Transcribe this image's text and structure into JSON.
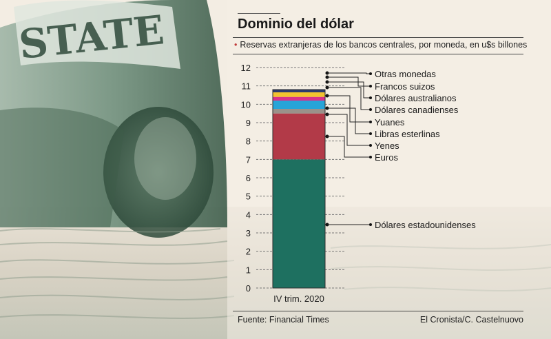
{
  "header": {
    "title": "Dominio del dólar",
    "subtitle": "Reservas extranjeras de los bancos centrales, por moneda, en u$s billones"
  },
  "footer": {
    "source": "Fuente:  Financial Times",
    "credit": "El Cronista/C. Castelnuovo"
  },
  "chart_data": {
    "type": "bar",
    "stacked": true,
    "title": "Dominio del dólar",
    "ylabel": "u$s billones",
    "categories": [
      "IV trim. 2020"
    ],
    "ylim": [
      0,
      12
    ],
    "yticks": [
      0,
      1,
      2,
      3,
      4,
      5,
      6,
      7,
      8,
      9,
      10,
      11,
      12
    ],
    "grid": true,
    "series": [
      {
        "name": "Dólares estadounidenses",
        "values": [
          7.0
        ],
        "color": "#1e7060"
      },
      {
        "name": "Euros",
        "values": [
          2.5
        ],
        "color": "#b23a48"
      },
      {
        "name": "Yenes",
        "values": [
          0.0
        ],
        "color": "#cfcfcf"
      },
      {
        "name": "Libras esterlinas",
        "values": [
          0.0
        ],
        "color": "#d9d2c2"
      },
      {
        "name": "Yuanes",
        "values": [
          0.25
        ],
        "color": "#9a928a"
      },
      {
        "name": "Dólares canadienses",
        "values": [
          0.45
        ],
        "color": "#27a4d8"
      },
      {
        "name": "Dólares australianos",
        "values": [
          0.2
        ],
        "color": "#d8318a"
      },
      {
        "name": "Francos suizos",
        "values": [
          0.25
        ],
        "color": "#f2c230"
      },
      {
        "name": "Otras monedas",
        "values": [
          0.15
        ],
        "color": "#2b3a70"
      }
    ],
    "legend_order": [
      "Otras monedas",
      "Francos suizos",
      "Dólares australianos",
      "Dólares canadienses",
      "Yuanes",
      "Libras esterlinas",
      "Yenes",
      "Euros",
      "Dólares estadounidenses"
    ]
  }
}
